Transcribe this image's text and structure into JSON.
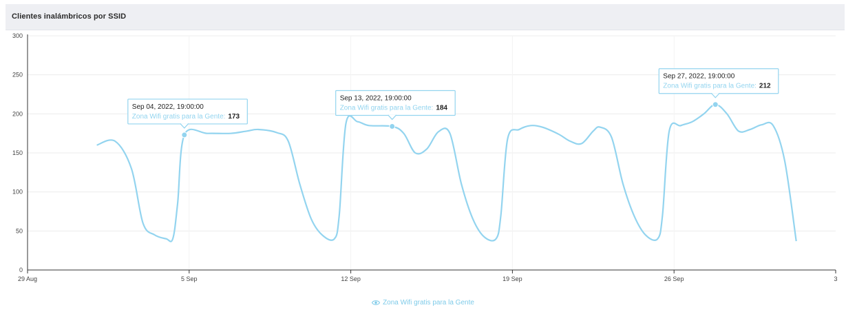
{
  "header": {
    "title": "Clientes inalámbricos por SSID"
  },
  "colors": {
    "series": "#93d4ef",
    "tooltip_border": "#93d4ef",
    "grid": "#ececec",
    "axis": "#333333"
  },
  "legend": {
    "label": "Zona Wifi gratis para la Gente",
    "icon": "eye-icon"
  },
  "chart_data": {
    "type": "line",
    "title": "Clientes inalámbricos por SSID",
    "xlabel": "",
    "ylabel": "",
    "ylim": [
      0,
      300
    ],
    "yticks": [
      "0",
      "50",
      "100",
      "150",
      "200",
      "250",
      "300"
    ],
    "xlim": [
      "2022-08-29",
      "2022-10-03"
    ],
    "xticks": [
      {
        "date": "2022-08-29",
        "label": "29 Aug"
      },
      {
        "date": "2022-09-05",
        "label": "5 Sep"
      },
      {
        "date": "2022-09-12",
        "label": "12 Sep"
      },
      {
        "date": "2022-09-19",
        "label": "19 Sep"
      },
      {
        "date": "2022-09-26",
        "label": "26 Sep"
      },
      {
        "date": "2022-10-03",
        "label": "3"
      }
    ],
    "grid": true,
    "legend_position": "bottom-center",
    "series": [
      {
        "name": "Zona Wifi gratis para la Gente",
        "points": [
          [
            "2022-09-01 00:00",
            160
          ],
          [
            "2022-09-01 19:00",
            165
          ],
          [
            "2022-09-02 12:00",
            130
          ],
          [
            "2022-09-03 00:00",
            60
          ],
          [
            "2022-09-03 12:00",
            45
          ],
          [
            "2022-09-04 00:00",
            40
          ],
          [
            "2022-09-04 07:00",
            40
          ],
          [
            "2022-09-04 12:00",
            85
          ],
          [
            "2022-09-04 19:00",
            173
          ],
          [
            "2022-09-05 19:00",
            175
          ],
          [
            "2022-09-06 19:00",
            175
          ],
          [
            "2022-09-07 12:00",
            178
          ],
          [
            "2022-09-08 00:00",
            180
          ],
          [
            "2022-09-08 19:00",
            176
          ],
          [
            "2022-09-09 07:00",
            165
          ],
          [
            "2022-09-09 19:00",
            110
          ],
          [
            "2022-09-10 07:00",
            65
          ],
          [
            "2022-09-10 19:00",
            44
          ],
          [
            "2022-09-11 07:00",
            40
          ],
          [
            "2022-09-11 12:00",
            70
          ],
          [
            "2022-09-11 19:00",
            188
          ],
          [
            "2022-09-12 07:00",
            190
          ],
          [
            "2022-09-12 19:00",
            185
          ],
          [
            "2022-09-13 19:00",
            184
          ],
          [
            "2022-09-14 07:00",
            175
          ],
          [
            "2022-09-14 19:00",
            150
          ],
          [
            "2022-09-15 07:00",
            155
          ],
          [
            "2022-09-15 19:00",
            177
          ],
          [
            "2022-09-16 07:00",
            175
          ],
          [
            "2022-09-16 19:00",
            110
          ],
          [
            "2022-09-17 07:00",
            65
          ],
          [
            "2022-09-17 19:00",
            42
          ],
          [
            "2022-09-18 07:00",
            40
          ],
          [
            "2022-09-18 12:00",
            70
          ],
          [
            "2022-09-18 19:00",
            168
          ],
          [
            "2022-09-19 07:00",
            180
          ],
          [
            "2022-09-19 19:00",
            185
          ],
          [
            "2022-09-20 07:00",
            183
          ],
          [
            "2022-09-21 00:00",
            174
          ],
          [
            "2022-09-21 12:00",
            165
          ],
          [
            "2022-09-22 00:00",
            162
          ],
          [
            "2022-09-22 12:00",
            178
          ],
          [
            "2022-09-22 19:00",
            183
          ],
          [
            "2022-09-23 07:00",
            170
          ],
          [
            "2022-09-23 19:00",
            110
          ],
          [
            "2022-09-24 07:00",
            68
          ],
          [
            "2022-09-24 19:00",
            44
          ],
          [
            "2022-09-25 07:00",
            40
          ],
          [
            "2022-09-25 12:00",
            70
          ],
          [
            "2022-09-25 19:00",
            178
          ],
          [
            "2022-09-26 07:00",
            185
          ],
          [
            "2022-09-26 19:00",
            190
          ],
          [
            "2022-09-27 07:00",
            200
          ],
          [
            "2022-09-27 19:00",
            212
          ],
          [
            "2022-09-28 07:00",
            200
          ],
          [
            "2022-09-28 19:00",
            178
          ],
          [
            "2022-09-29 07:00",
            180
          ],
          [
            "2022-09-29 19:00",
            186
          ],
          [
            "2022-09-30 07:00",
            185
          ],
          [
            "2022-09-30 19:00",
            140
          ],
          [
            "2022-10-01 07:00",
            37
          ]
        ]
      }
    ],
    "tooltips": [
      {
        "x": "2022-09-04 19:00",
        "y": 173,
        "date_label": "Sep 04, 2022, 19:00:00",
        "series_label": "Zona Wifi gratis para la Gente:",
        "value_label": "173"
      },
      {
        "x": "2022-09-13 19:00",
        "y": 184,
        "date_label": "Sep 13, 2022, 19:00:00",
        "series_label": "Zona Wifi gratis para la Gente:",
        "value_label": "184"
      },
      {
        "x": "2022-09-27 19:00",
        "y": 212,
        "date_label": "Sep 27, 2022, 19:00:00",
        "series_label": "Zona Wifi gratis para la Gente:",
        "value_label": "212"
      }
    ]
  }
}
